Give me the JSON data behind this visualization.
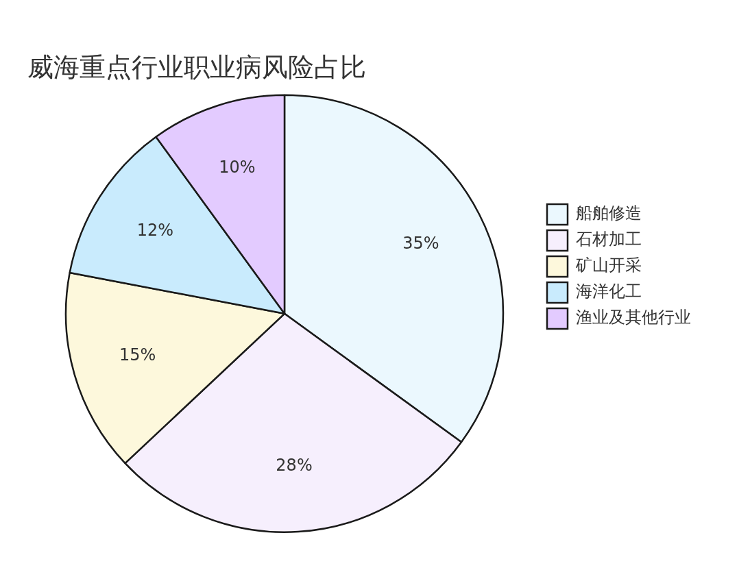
{
  "chart_data": {
    "type": "pie",
    "title": "威海重点行业职业病风险占比",
    "categories": [
      "船舶修造",
      "石材加工",
      "矿山开采",
      "海洋化工",
      "渔业及其他行业"
    ],
    "values": [
      35,
      28,
      15,
      12,
      10
    ],
    "value_labels": [
      "35%",
      "28%",
      "15%",
      "12%",
      "10%"
    ],
    "colors": [
      "#ebf8fe",
      "#f6effd",
      "#fdf8dc",
      "#c9ebfd",
      "#e3cbff"
    ],
    "legend": "right"
  }
}
